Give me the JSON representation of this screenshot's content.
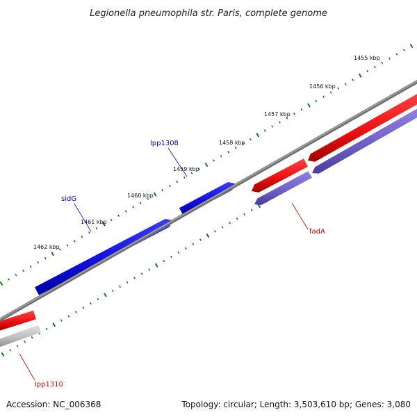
{
  "title": "Legionella pneumophila str. Paris, complete genome",
  "footer": {
    "accession": "Accession: NC_006368",
    "topology": "Topology: circular; Length: 3,503,610 bp; Genes: 3,080"
  },
  "ticks": [
    {
      "label": "1455 kbp"
    },
    {
      "label": "1456 kbp"
    },
    {
      "label": "1457 kbp"
    },
    {
      "label": "1458 kbp"
    },
    {
      "label": "1459 kbp"
    },
    {
      "label": "1460 kbp"
    },
    {
      "label": "1461 kbp"
    },
    {
      "label": "1462 kbp"
    }
  ],
  "genes": [
    {
      "name": "lpp1308",
      "color": "#0000cc"
    },
    {
      "name": "sidG",
      "color": "#0000cc"
    },
    {
      "name": "fadA",
      "color": "#cc0000"
    },
    {
      "name": "lpp1310",
      "color": "#cc0000"
    }
  ],
  "colors": {
    "forward_feature": "#1a1aee",
    "reverse_feature": "#ee1111",
    "cds_track": "#7766cc",
    "grey_track": "#bbbbbb",
    "backbone": "#888888",
    "tick": "#117711"
  }
}
